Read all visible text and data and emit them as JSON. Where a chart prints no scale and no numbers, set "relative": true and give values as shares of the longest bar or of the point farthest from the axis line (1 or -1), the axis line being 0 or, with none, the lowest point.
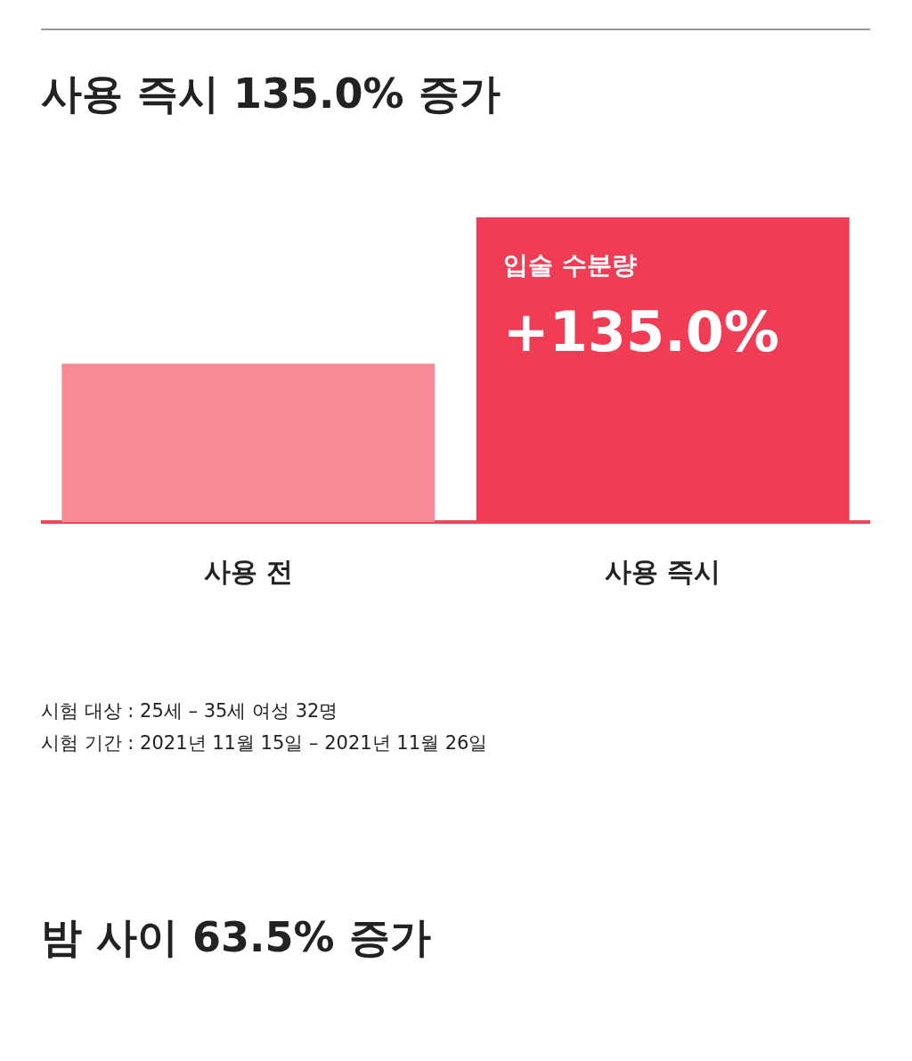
{
  "chart_data": {
    "type": "bar",
    "title": "사용 즉시 135.0% 증가",
    "relative": true,
    "categories": [
      "사용 전",
      "사용 즉시"
    ],
    "values": [
      0.52,
      1
    ],
    "colors": [
      "#f98b96",
      "#f03c55"
    ],
    "annotations": [
      "시험 대상 : 25세 – 35세 여성 32명",
      "시험 기간 : 2021년 11월 15일 – 2021년 11월 26일",
      "밤 사이 63.5% 증가",
      {
        "text": "입술 수분량",
        "x": "사용 즉시",
        "y": 1
      },
      {
        "text": "+135.0%",
        "x": "사용 즉시",
        "y": 1
      }
    ]
  }
}
